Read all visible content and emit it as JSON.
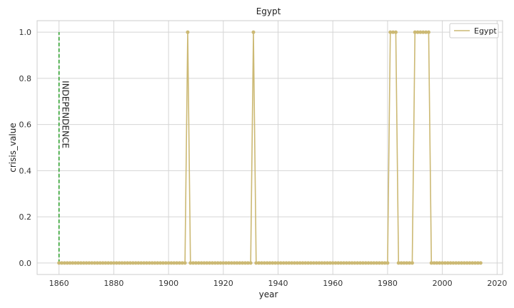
{
  "chart_data": {
    "type": "line",
    "title": "Egypt",
    "xlabel": "year",
    "ylabel": "crisis_value",
    "xlim": [
      1852,
      2022
    ],
    "ylim": [
      -0.05,
      1.05
    ],
    "x_ticks": [
      1860,
      1880,
      1900,
      1920,
      1940,
      1960,
      1980,
      2000,
      2020
    ],
    "y_ticks": [
      0.0,
      0.2,
      0.4,
      0.6,
      0.8,
      1.0
    ],
    "x_tick_labels": [
      "1860",
      "1880",
      "1900",
      "1920",
      "1940",
      "1960",
      "1980",
      "2000",
      "2020"
    ],
    "y_tick_labels": [
      "0.0",
      "0.2",
      "0.4",
      "0.6",
      "0.8",
      "1.0"
    ],
    "grid": true,
    "legend": {
      "position": "top-right",
      "entries": [
        "Egypt"
      ]
    },
    "series": [
      {
        "name": "Egypt",
        "color": "#ccb974",
        "x_start": 1860,
        "x_end": 2014,
        "crisis_years": [
          1907,
          1931,
          1981,
          1982,
          1983,
          1990,
          1991,
          1992,
          1993,
          1994,
          1995
        ]
      }
    ],
    "annotations": [
      {
        "type": "vline",
        "x": 1860,
        "y_from": 0,
        "y_to": 1,
        "color": "#2ca02c",
        "style": "dashed",
        "label": "INDEPENDENCE"
      }
    ]
  }
}
